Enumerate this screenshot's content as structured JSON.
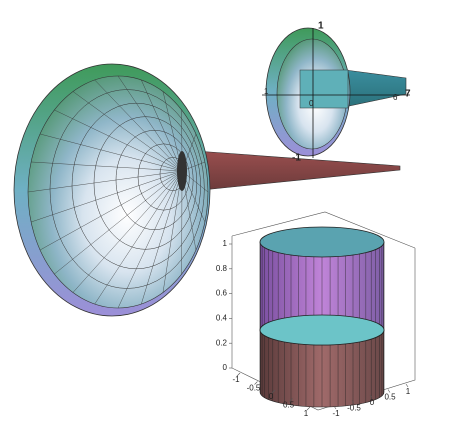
{
  "small_horn": {
    "labels": {
      "top": 1,
      "bottom": -1,
      "left": 1,
      "center": 0,
      "far1": 6,
      "far2": 7
    }
  },
  "cylinder_plot": {
    "z_ticks": [
      0,
      0.2,
      0.4,
      0.6,
      0.8,
      1
    ],
    "x_ticks": [
      -1,
      -0.5,
      0,
      0.5,
      1
    ],
    "y_ticks": [
      -1,
      -0.5,
      0,
      0.5,
      1
    ]
  }
}
